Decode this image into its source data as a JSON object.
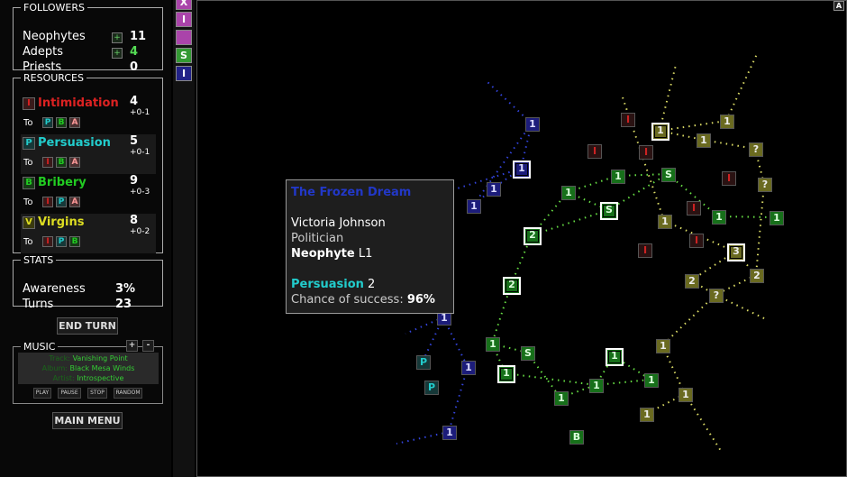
{
  "followers": {
    "title": "FOLLOWERS",
    "rows": [
      {
        "label": "Neophytes",
        "value": "11",
        "plus": "+"
      },
      {
        "label": "Adepts",
        "value": "4",
        "plus": "+"
      },
      {
        "label": "Priests",
        "value": "0"
      }
    ]
  },
  "resources": {
    "title": "RESOURCES",
    "to_label": "To",
    "items": [
      {
        "icon": "I",
        "name": "Intimidation",
        "value": "4",
        "inc": "+0-1",
        "color": "#d22",
        "to": [
          "P",
          "B",
          "A"
        ]
      },
      {
        "icon": "P",
        "name": "Persuasion",
        "value": "5",
        "inc": "+0-1",
        "color": "#2cc",
        "to": [
          "I",
          "B",
          "A"
        ]
      },
      {
        "icon": "B",
        "name": "Bribery",
        "value": "9",
        "inc": "+0-3",
        "color": "#2c2",
        "to": [
          "I",
          "P",
          "A"
        ]
      },
      {
        "icon": "V",
        "name": "Virgins",
        "value": "8",
        "inc": "+0-2",
        "color": "#dd2",
        "to": [
          "I",
          "P",
          "B"
        ]
      }
    ]
  },
  "stats": {
    "title": "STATS",
    "rows": [
      {
        "label": "Awareness",
        "value": "3%"
      },
      {
        "label": "Turns",
        "value": "23"
      }
    ]
  },
  "end_turn": "END TURN",
  "music": {
    "title": "MUSIC",
    "plus": "+",
    "minus": "-",
    "track_label": "Track:",
    "track": "Vanishing Point",
    "album_label": "Album:",
    "album": "Black Mesa Winds",
    "artist_label": "Artist:",
    "artist": "Introspective",
    "play": "PLAY",
    "pause": "PAUSE",
    "stop": "STOP",
    "random": "RANDOM"
  },
  "main_menu": "MAIN MENU",
  "strip": [
    "X",
    "I",
    "",
    "S",
    "I"
  ],
  "map_corner": "A",
  "tooltip": {
    "group": "The Frozen Dream",
    "name": "Victoria Johnson",
    "job": "Politician",
    "rank": "Neophyte",
    "level": "L1",
    "skill": "Persuasion",
    "skill_value": "2",
    "chance_label": "Chance of success:",
    "chance": "96%"
  },
  "nodes": [
    "1",
    "1",
    "1",
    "1",
    "1",
    "1",
    "1",
    "P",
    "P",
    "1",
    "S",
    "1",
    "S",
    "2",
    "2",
    "1",
    "S",
    "1",
    "1",
    "1",
    "1",
    "1",
    "1",
    "1",
    "B",
    "1",
    "1",
    "1",
    "?",
    "?",
    "1",
    "3",
    "2",
    "2",
    "?",
    "1",
    "1",
    "1",
    "I",
    "I",
    "I",
    "I",
    "I",
    "I",
    "I"
  ]
}
